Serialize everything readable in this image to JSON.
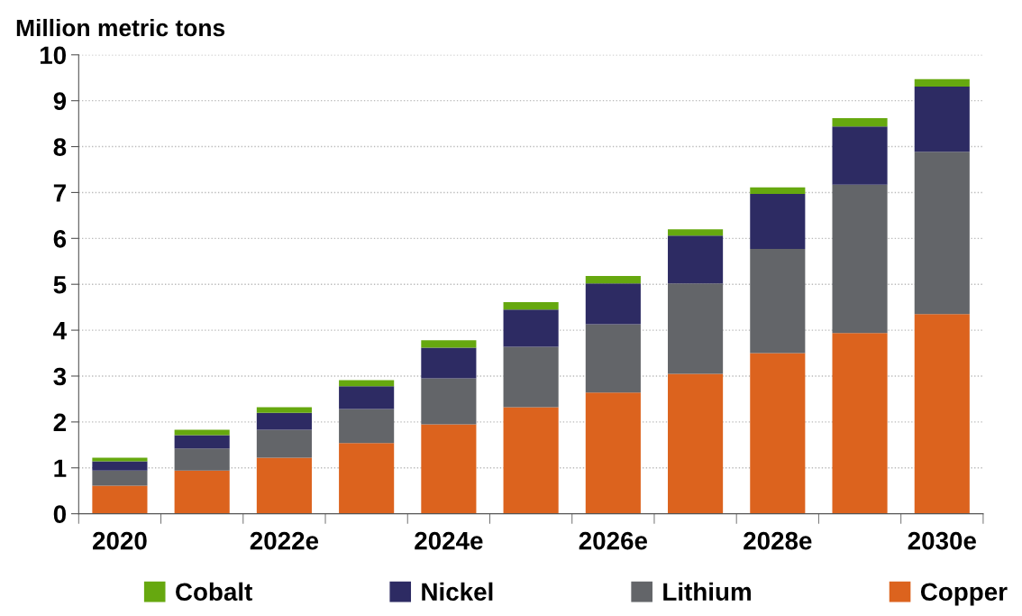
{
  "chart_data": {
    "type": "bar",
    "stacked": true,
    "ylabel": "Million metric tons",
    "categories": [
      "2020",
      null,
      "2022e",
      null,
      "2024e",
      null,
      "2026e",
      null,
      "2028e",
      null,
      "2030e"
    ],
    "series": [
      {
        "name": "Copper",
        "color": "#dc631e",
        "values": [
          0.61,
          0.94,
          1.22,
          1.54,
          1.95,
          2.32,
          2.64,
          3.05,
          3.5,
          3.94,
          4.35
        ]
      },
      {
        "name": "Lithium",
        "color": "#636569",
        "values": [
          0.33,
          0.48,
          0.61,
          0.74,
          1.0,
          1.32,
          1.49,
          1.97,
          2.27,
          3.23,
          3.54
        ]
      },
      {
        "name": "Nickel",
        "color": "#2d2b63",
        "values": [
          0.2,
          0.29,
          0.37,
          0.5,
          0.67,
          0.81,
          0.89,
          1.04,
          1.2,
          1.27,
          1.42
        ]
      },
      {
        "name": "Cobalt",
        "color": "#66a80f",
        "values": [
          0.08,
          0.12,
          0.12,
          0.13,
          0.16,
          0.16,
          0.16,
          0.14,
          0.14,
          0.18,
          0.16
        ]
      }
    ],
    "ylim": [
      0,
      10
    ],
    "yticks": [
      0,
      1,
      2,
      3,
      4,
      5,
      6,
      7,
      8,
      9,
      10
    ],
    "grid": "y",
    "legend": "bottom"
  }
}
